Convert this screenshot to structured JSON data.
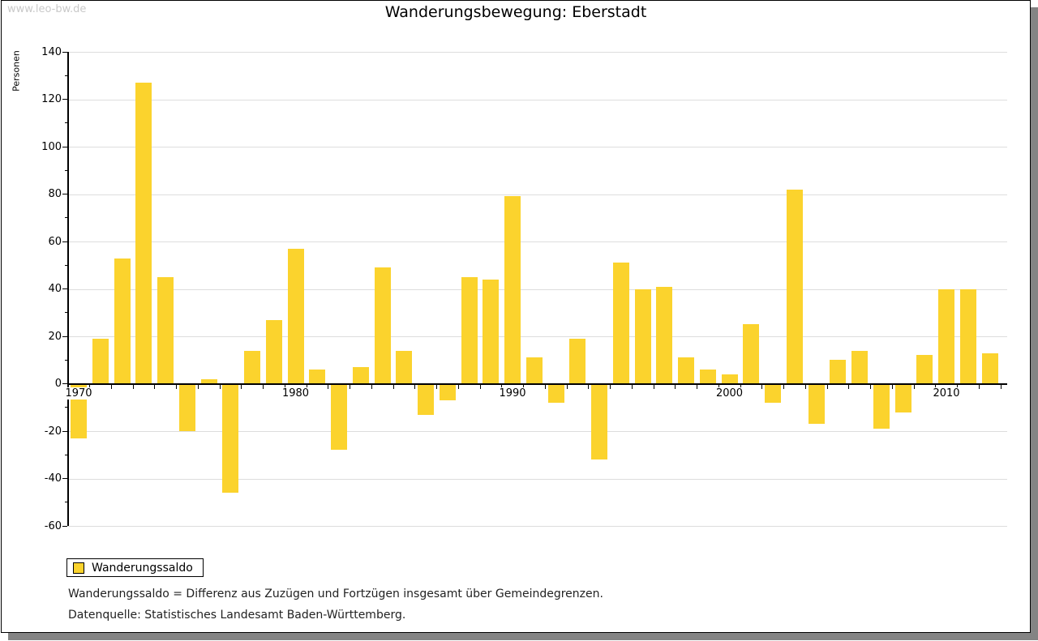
{
  "watermark": "www.leo-bw.de",
  "title": "Wanderungsbewegung: Eberstadt",
  "chart_data": {
    "type": "bar",
    "title": "Wanderungsbewegung: Eberstadt",
    "xlabel": "",
    "ylabel": "Personen",
    "ylim": [
      -60,
      140
    ],
    "ytick_step": 20,
    "grid": "horizontal",
    "legend_position": "bottom-left",
    "categories": [
      1970,
      1971,
      1972,
      1973,
      1974,
      1975,
      1976,
      1977,
      1978,
      1979,
      1980,
      1981,
      1982,
      1983,
      1984,
      1985,
      1986,
      1987,
      1988,
      1989,
      1990,
      1991,
      1992,
      1993,
      1994,
      1995,
      1996,
      1997,
      1998,
      1999,
      2000,
      2001,
      2002,
      2003,
      2004,
      2005,
      2006,
      2007,
      2008,
      2009,
      2010,
      2011,
      2012
    ],
    "xtick_labels": [
      1970,
      1980,
      1990,
      2000,
      2010
    ],
    "series": [
      {
        "name": "Wanderungssaldo",
        "color": "#FBD32D",
        "values": [
          -23,
          19,
          53,
          127,
          45,
          -20,
          2,
          -46,
          14,
          27,
          57,
          6,
          -28,
          7,
          49,
          14,
          -13,
          -7,
          45,
          44,
          79,
          11,
          -8,
          19,
          -32,
          51,
          40,
          41,
          11,
          6,
          4,
          25,
          -8,
          82,
          -17,
          10,
          14,
          -19,
          -12,
          12,
          40,
          40,
          13
        ]
      }
    ]
  },
  "legend": {
    "items": [
      {
        "label": "Wanderungssaldo",
        "color": "#FBD32D"
      }
    ]
  },
  "footnotes": [
    "Wanderungssaldo = Differenz aus Zuzügen und Fortzügen insgesamt über Gemeindegrenzen.",
    "Datenquelle: Statistisches Landesamt Baden-Württemberg."
  ],
  "colors": {
    "bar": "#FBD32D",
    "gridline": "#dddddd",
    "axis": "#000000",
    "watermark": "#c9c9c9",
    "shadow": "#848484",
    "background": "#ffffff"
  }
}
